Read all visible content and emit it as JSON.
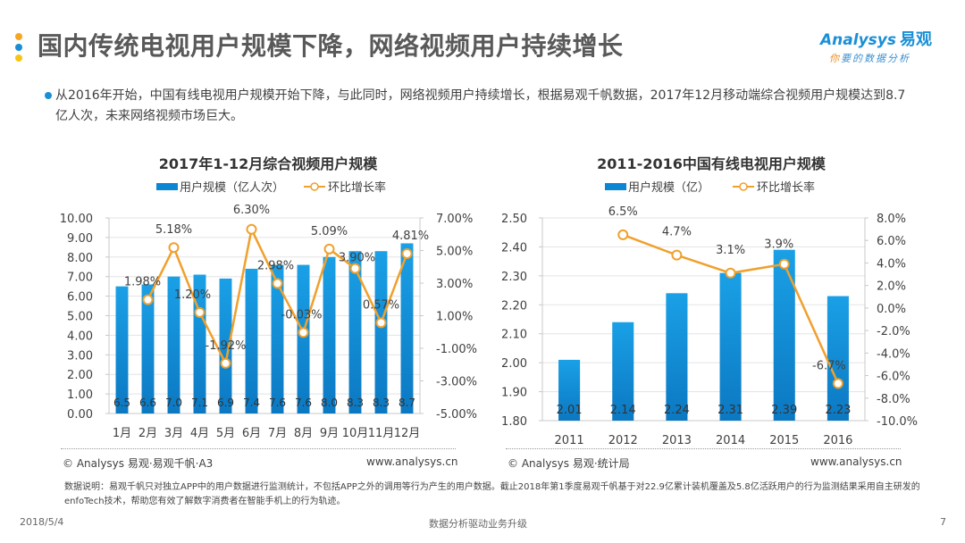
{
  "header": {
    "title": "国内传统电视用户规模下降，网络视频用户持续增长",
    "title_dots_colors": [
      "#f5a623",
      "#1a8fd6",
      "#f5c518"
    ],
    "logo": {
      "brand": "nalysys",
      "brand_prefix": "A",
      "brand_cn": "易观",
      "slogan_first": "你",
      "slogan_rest": "要的数据分析"
    }
  },
  "summary": {
    "text": "从2016年开始，中国有线电视用户规模开始下降，与此同时，网络视频用户持续增长，根据易观千帆数据，2017年12月移动端综合视频用户规模达到8.7亿人次，未来网络视频市场巨大。"
  },
  "colors": {
    "bar": "#0a86d4",
    "bar_dark": "#0b78c2",
    "line": "#f0a02c",
    "grid": "#e3e3e3",
    "axis": "#c8c8c8"
  },
  "chart_data": [
    {
      "type": "bar",
      "combo_line": true,
      "title": "2017年1-12月综合视频用户规模",
      "legend": {
        "bar": "用户规模（亿人次）",
        "line": "环比增长率",
        "placement": "top-center"
      },
      "categories": [
        "1月",
        "2月",
        "3月",
        "4月",
        "5月",
        "6月",
        "7月",
        "8月",
        "9月",
        "10月",
        "11月",
        "12月"
      ],
      "series": [
        {
          "name": "用户规模（亿人次）",
          "type": "bar",
          "axis": "left",
          "values": [
            6.5,
            6.6,
            7.0,
            7.1,
            6.9,
            7.4,
            7.6,
            7.6,
            8.0,
            8.3,
            8.3,
            8.7
          ],
          "labels": [
            "6.5",
            "6.6",
            "7.0",
            "7.1",
            "6.9",
            "7.4",
            "7.6",
            "7.6",
            "8.0",
            "8.3",
            "8.3",
            "8.7"
          ]
        },
        {
          "name": "环比增长率",
          "type": "line",
          "axis": "right",
          "values": [
            null,
            1.98,
            5.18,
            1.2,
            -1.92,
            6.3,
            2.98,
            -0.03,
            5.09,
            3.9,
            0.57,
            4.81
          ],
          "labels": [
            "",
            "1.98%",
            "5.18%",
            "1.20%",
            "-1.92%",
            "6.30%",
            "2.98%",
            "-0.03%",
            "5.09%",
            "3.90%",
            "0.57%",
            "4.81%"
          ]
        }
      ],
      "y_left": {
        "min": 0,
        "max": 10,
        "ticks": [
          "0.00",
          "1.00",
          "2.00",
          "3.00",
          "4.00",
          "5.00",
          "6.00",
          "7.00",
          "8.00",
          "9.00",
          "10.00"
        ]
      },
      "y_right": {
        "min": -5,
        "max": 7,
        "ticks": [
          "-5.00%",
          "-3.00%",
          "-1.00%",
          "1.00%",
          "3.00%",
          "5.00%",
          "7.00%"
        ]
      },
      "grid": true,
      "source": "© Analysys 易观·易观千帆·A3",
      "site": "www.analysys.cn"
    },
    {
      "type": "bar",
      "combo_line": true,
      "title": "2011-2016中国有线电视用户规模",
      "legend": {
        "bar": "用户规模（亿）",
        "line": "环比增长率",
        "placement": "top-center"
      },
      "categories": [
        "2011",
        "2012",
        "2013",
        "2014",
        "2015",
        "2016"
      ],
      "series": [
        {
          "name": "用户规模（亿）",
          "type": "bar",
          "axis": "left",
          "values": [
            2.01,
            2.14,
            2.24,
            2.31,
            2.39,
            2.23
          ],
          "labels": [
            "2.01",
            "2.14",
            "2.24",
            "2.31",
            "2.39",
            "2.23"
          ]
        },
        {
          "name": "环比增长率",
          "type": "line",
          "axis": "right",
          "values": [
            null,
            6.5,
            4.7,
            3.1,
            3.9,
            -6.7
          ],
          "labels": [
            "",
            "6.5%",
            "4.7%",
            "3.1%",
            "3.9%",
            "-6.7%"
          ]
        }
      ],
      "y_left": {
        "min": 1.8,
        "max": 2.5,
        "ticks": [
          "1.80",
          "1.90",
          "2.00",
          "2.10",
          "2.20",
          "2.30",
          "2.40",
          "2.50"
        ]
      },
      "y_right": {
        "min": -10,
        "max": 8,
        "ticks": [
          "-10.0%",
          "-8.0%",
          "-6.0%",
          "-4.0%",
          "-2.0%",
          "0.0%",
          "2.0%",
          "4.0%",
          "6.0%",
          "8.0%"
        ]
      },
      "grid": true,
      "source": "© Analysys 易观·统计局",
      "site": "www.analysys.cn"
    }
  ],
  "note": "数据说明：易观千帆只对独立APP中的用户数据进行监测统计，不包括APP之外的调用等行为产生的用户数据。截止2018年第1季度易观千帆基于对22.9亿累计装机覆盖及5.8亿活跃用户的行为监测结果采用自主研发的enfoTech技术，帮助您有效了解数字消费者在智能手机上的行为轨迹。",
  "footer": {
    "date": "2018/5/4",
    "center": "数据分析驱动业务升级",
    "page": "7"
  }
}
